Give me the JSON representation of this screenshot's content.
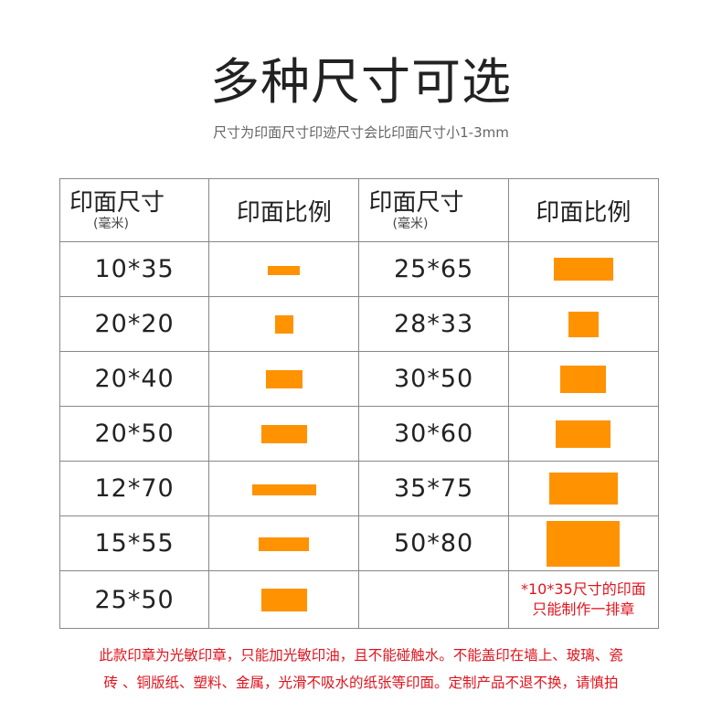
{
  "title": "多种尺寸可选",
  "subtitle": "尺寸为印面尺寸印迹尺寸会比印面尺寸小1-3mm",
  "swatch_color": "#ff9200",
  "table": {
    "header": {
      "size_label": "印面尺寸",
      "size_unit": "(毫米)",
      "ratio_label": "印面比例"
    },
    "rows": [
      {
        "left": {
          "size": "10*35",
          "w": 10,
          "h": 35
        },
        "right": {
          "size": "25*65",
          "w": 25,
          "h": 65
        }
      },
      {
        "left": {
          "size": "20*20",
          "w": 20,
          "h": 20
        },
        "right": {
          "size": "28*33",
          "w": 28,
          "h": 33
        }
      },
      {
        "left": {
          "size": "20*40",
          "w": 20,
          "h": 40
        },
        "right": {
          "size": "30*50",
          "w": 30,
          "h": 50
        }
      },
      {
        "left": {
          "size": "20*50",
          "w": 20,
          "h": 50
        },
        "right": {
          "size": "30*60",
          "w": 30,
          "h": 60
        }
      },
      {
        "left": {
          "size": "12*70",
          "w": 12,
          "h": 70
        },
        "right": {
          "size": "35*75",
          "w": 35,
          "h": 75
        }
      },
      {
        "left": {
          "size": "15*55",
          "w": 15,
          "h": 55
        },
        "right": {
          "size": "50*80",
          "w": 50,
          "h": 80
        }
      },
      {
        "left": {
          "size": "25*50",
          "w": 25,
          "h": 50
        },
        "right": null
      }
    ],
    "note_line1": "*10*35尺寸的印面",
    "note_line2": "只能制作一排章"
  },
  "footer": {
    "line1": "此款印章为光敏印章，只能加光敏印油，且不能碰触水。不能盖印在墙上、玻璃、瓷",
    "line2": "砖 、铜版纸、塑料、金属，光滑不吸水的纸张等印面。定制产品不退不换，请慎拍"
  }
}
